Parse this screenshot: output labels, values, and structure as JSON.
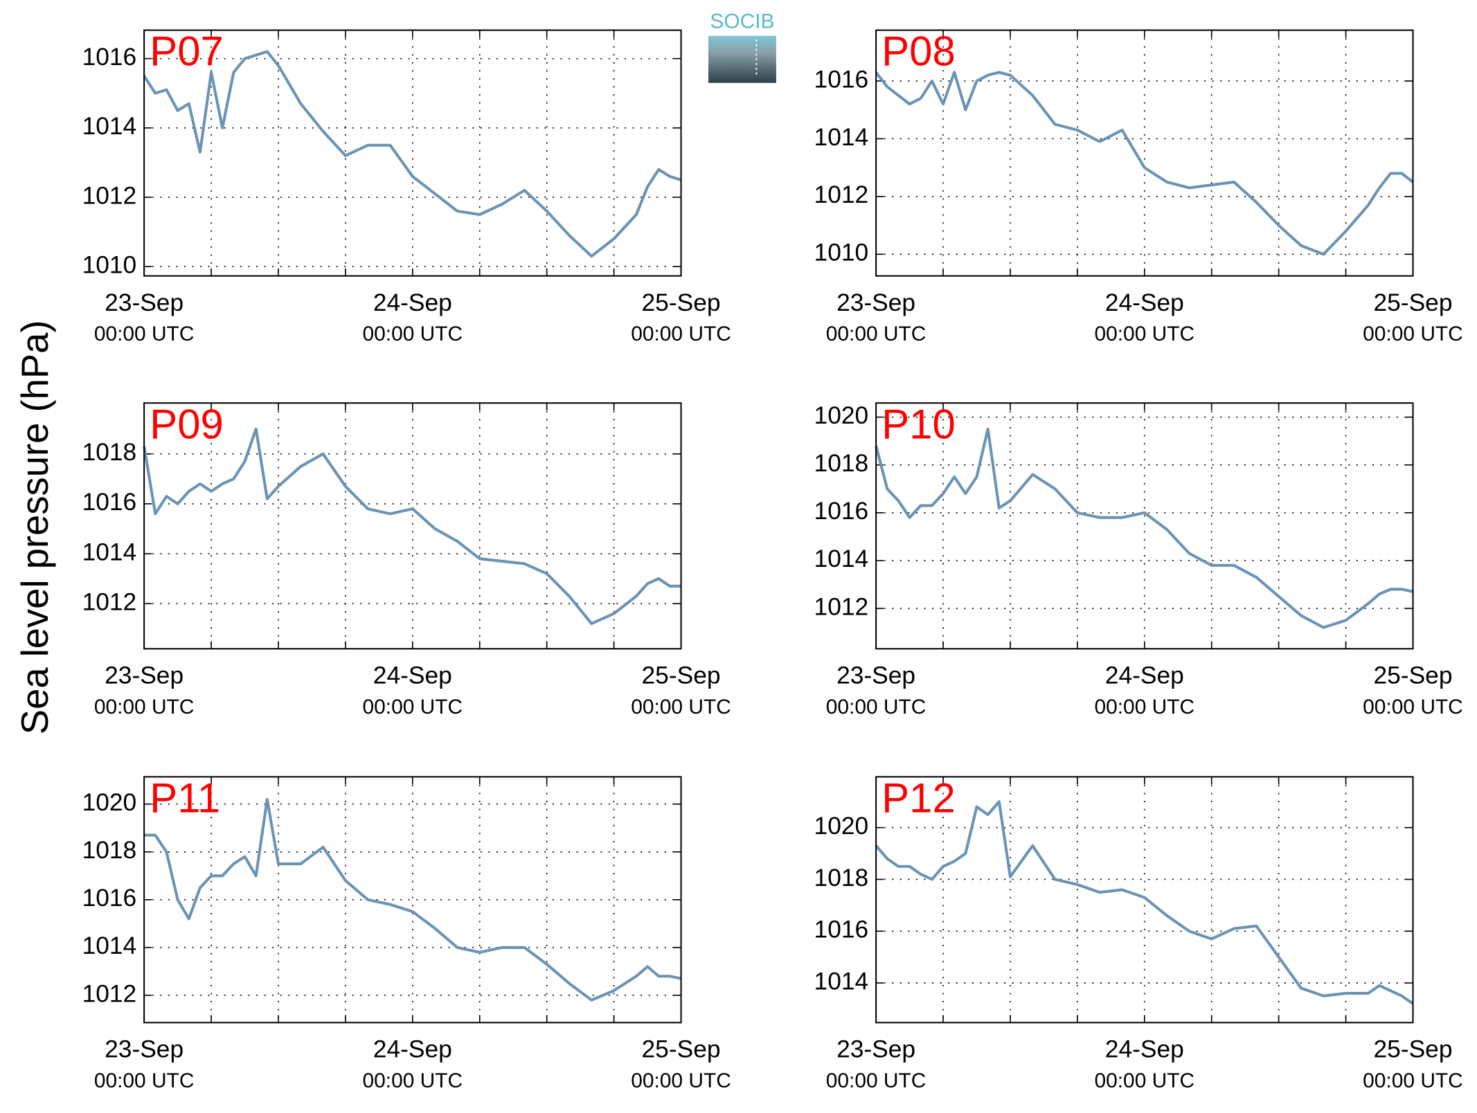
{
  "ylabel": "Sea level pressure (hPa)",
  "logo": "SOCIB",
  "chart_data": [
    {
      "type": "line",
      "title": "P07",
      "color": "#6a93b4",
      "grid": true,
      "x": [
        0,
        1,
        2,
        3,
        4,
        5,
        6,
        7,
        8,
        9,
        10,
        11,
        12,
        14,
        16,
        18,
        20,
        22,
        24,
        26,
        28,
        30,
        32,
        34,
        36,
        38,
        40,
        42,
        44,
        45,
        46,
        47,
        48
      ],
      "values": [
        1015.5,
        1015.0,
        1015.1,
        1014.5,
        1014.7,
        1013.3,
        1015.6,
        1014.0,
        1015.6,
        1016.0,
        1016.1,
        1016.2,
        1015.8,
        1014.7,
        1013.9,
        1013.2,
        1013.5,
        1013.5,
        1012.6,
        1012.1,
        1011.6,
        1011.5,
        1011.8,
        1012.2,
        1011.6,
        1010.9,
        1010.3,
        1010.8,
        1011.5,
        1012.3,
        1012.8,
        1012.6,
        1012.5
      ],
      "xlim": [
        0,
        48
      ],
      "xticks": [
        {
          "value": 0,
          "label": "23-Sep",
          "sublabel": "00:00 UTC"
        },
        {
          "value": 24,
          "label": "24-Sep",
          "sublabel": "00:00 UTC"
        },
        {
          "value": 48,
          "label": "25-Sep",
          "sublabel": "00:00 UTC"
        }
      ],
      "xminor": [
        6,
        12,
        18,
        30,
        36,
        42
      ],
      "ylim": [
        1009.73,
        1016.82
      ],
      "yticks": [
        1010,
        1012,
        1014,
        1016
      ]
    },
    {
      "type": "line",
      "title": "P08",
      "color": "#6a93b4",
      "grid": true,
      "x": [
        0,
        1,
        2,
        3,
        4,
        5,
        6,
        7,
        8,
        9,
        10,
        11,
        12,
        14,
        16,
        18,
        20,
        22,
        24,
        26,
        28,
        30,
        32,
        34,
        36,
        38,
        40,
        42,
        44,
        45,
        46,
        47,
        48
      ],
      "values": [
        1016.3,
        1015.8,
        1015.5,
        1015.2,
        1015.4,
        1016.0,
        1015.2,
        1016.3,
        1015.0,
        1016.0,
        1016.2,
        1016.3,
        1016.2,
        1015.5,
        1014.5,
        1014.3,
        1013.9,
        1014.3,
        1013.0,
        1012.5,
        1012.3,
        1012.4,
        1012.5,
        1011.8,
        1011.0,
        1010.3,
        1010.0,
        1010.8,
        1011.7,
        1012.3,
        1012.8,
        1012.8,
        1012.5
      ],
      "xlim": [
        0,
        48
      ],
      "xticks": [
        {
          "value": 0,
          "label": "23-Sep",
          "sublabel": "00:00 UTC"
        },
        {
          "value": 24,
          "label": "24-Sep",
          "sublabel": "00:00 UTC"
        },
        {
          "value": 48,
          "label": "25-Sep",
          "sublabel": "00:00 UTC"
        }
      ],
      "xminor": [
        6,
        12,
        18,
        30,
        36,
        42
      ],
      "ylim": [
        1009.25,
        1017.76
      ],
      "yticks": [
        1010,
        1012,
        1014,
        1016
      ]
    },
    {
      "type": "line",
      "title": "P09",
      "color": "#6a93b4",
      "grid": true,
      "x": [
        0,
        1,
        2,
        3,
        4,
        5,
        6,
        7,
        8,
        9,
        10,
        11,
        12,
        14,
        16,
        18,
        20,
        22,
        24,
        26,
        28,
        30,
        32,
        34,
        36,
        38,
        40,
        42,
        44,
        45,
        46,
        47,
        48
      ],
      "values": [
        1018.3,
        1015.6,
        1016.3,
        1016.0,
        1016.5,
        1016.8,
        1016.5,
        1016.8,
        1017.0,
        1017.7,
        1019.0,
        1016.2,
        1016.7,
        1017.5,
        1018.0,
        1016.7,
        1015.8,
        1015.6,
        1015.8,
        1015.0,
        1014.5,
        1013.8,
        1013.7,
        1013.6,
        1013.2,
        1012.3,
        1011.2,
        1011.6,
        1012.3,
        1012.8,
        1013.0,
        1012.7,
        1012.7
      ],
      "xlim": [
        0,
        48
      ],
      "xticks": [
        {
          "value": 0,
          "label": "23-Sep",
          "sublabel": "00:00 UTC"
        },
        {
          "value": 24,
          "label": "24-Sep",
          "sublabel": "00:00 UTC"
        },
        {
          "value": 48,
          "label": "25-Sep",
          "sublabel": "00:00 UTC"
        }
      ],
      "xminor": [
        6,
        12,
        18,
        30,
        36,
        42
      ],
      "ylim": [
        1010.19,
        1020.04
      ],
      "yticks": [
        1012,
        1014,
        1016,
        1018
      ]
    },
    {
      "type": "line",
      "title": "P10",
      "color": "#6a93b4",
      "grid": true,
      "x": [
        0,
        1,
        2,
        3,
        4,
        5,
        6,
        7,
        8,
        9,
        10,
        11,
        12,
        14,
        16,
        18,
        20,
        22,
        24,
        26,
        28,
        30,
        32,
        34,
        36,
        38,
        40,
        42,
        44,
        45,
        46,
        47,
        48
      ],
      "values": [
        1018.8,
        1017.0,
        1016.5,
        1015.8,
        1016.3,
        1016.3,
        1016.8,
        1017.5,
        1016.8,
        1017.5,
        1019.5,
        1016.2,
        1016.5,
        1017.6,
        1017.0,
        1016.0,
        1015.8,
        1015.8,
        1016.0,
        1015.3,
        1014.3,
        1013.8,
        1013.8,
        1013.3,
        1012.5,
        1011.7,
        1011.2,
        1011.5,
        1012.2,
        1012.6,
        1012.8,
        1012.8,
        1012.7
      ],
      "xlim": [
        0,
        48
      ],
      "xticks": [
        {
          "value": 0,
          "label": "23-Sep",
          "sublabel": "00:00 UTC"
        },
        {
          "value": 24,
          "label": "24-Sep",
          "sublabel": "00:00 UTC"
        },
        {
          "value": 48,
          "label": "25-Sep",
          "sublabel": "00:00 UTC"
        }
      ],
      "xminor": [
        6,
        12,
        18,
        30,
        36,
        42
      ],
      "ylim": [
        1010.31,
        1020.59
      ],
      "yticks": [
        1012,
        1014,
        1016,
        1018,
        1020
      ]
    },
    {
      "type": "line",
      "title": "P11",
      "color": "#6a93b4",
      "grid": true,
      "x": [
        0,
        1,
        2,
        3,
        4,
        5,
        6,
        7,
        8,
        9,
        10,
        11,
        12,
        14,
        16,
        18,
        20,
        22,
        24,
        26,
        28,
        30,
        32,
        34,
        36,
        38,
        40,
        42,
        44,
        45,
        46,
        47,
        48
      ],
      "values": [
        1018.7,
        1018.7,
        1018.0,
        1016.0,
        1015.2,
        1016.5,
        1017.0,
        1017.0,
        1017.5,
        1017.8,
        1017.0,
        1020.2,
        1017.5,
        1017.5,
        1018.2,
        1016.8,
        1016.0,
        1015.8,
        1015.5,
        1014.8,
        1014.0,
        1013.8,
        1014.0,
        1014.0,
        1013.3,
        1012.5,
        1011.8,
        1012.2,
        1012.8,
        1013.2,
        1012.8,
        1012.8,
        1012.7
      ],
      "xlim": [
        0,
        48
      ],
      "xticks": [
        {
          "value": 0,
          "label": "23-Sep",
          "sublabel": "00:00 UTC"
        },
        {
          "value": 24,
          "label": "24-Sep",
          "sublabel": "00:00 UTC"
        },
        {
          "value": 48,
          "label": "25-Sep",
          "sublabel": "00:00 UTC"
        }
      ],
      "xminor": [
        6,
        12,
        18,
        30,
        36,
        42
      ],
      "ylim": [
        1010.86,
        1021.14
      ],
      "yticks": [
        1012,
        1014,
        1016,
        1018,
        1020
      ]
    },
    {
      "type": "line",
      "title": "P12",
      "color": "#6a93b4",
      "grid": true,
      "x": [
        0,
        1,
        2,
        3,
        4,
        5,
        6,
        7,
        8,
        9,
        10,
        11,
        12,
        14,
        16,
        18,
        20,
        22,
        24,
        26,
        28,
        30,
        32,
        34,
        36,
        38,
        40,
        42,
        44,
        45,
        46,
        47,
        48
      ],
      "values": [
        1019.3,
        1018.8,
        1018.5,
        1018.5,
        1018.2,
        1018.0,
        1018.5,
        1018.7,
        1019.0,
        1020.8,
        1020.5,
        1021.0,
        1018.1,
        1019.3,
        1018.0,
        1017.8,
        1017.5,
        1017.6,
        1017.3,
        1016.6,
        1016.0,
        1015.7,
        1016.1,
        1016.2,
        1015.0,
        1013.8,
        1013.5,
        1013.6,
        1013.6,
        1013.9,
        1013.7,
        1013.5,
        1013.2
      ],
      "xlim": [
        0,
        48
      ],
      "xticks": [
        {
          "value": 0,
          "label": "23-Sep",
          "sublabel": "00:00 UTC"
        },
        {
          "value": 24,
          "label": "24-Sep",
          "sublabel": "00:00 UTC"
        },
        {
          "value": 48,
          "label": "25-Sep",
          "sublabel": "00:00 UTC"
        }
      ],
      "xminor": [
        6,
        12,
        18,
        30,
        36,
        42
      ],
      "ylim": [
        1012.47,
        1021.96
      ],
      "yticks": [
        1014,
        1016,
        1018,
        1020
      ]
    }
  ]
}
